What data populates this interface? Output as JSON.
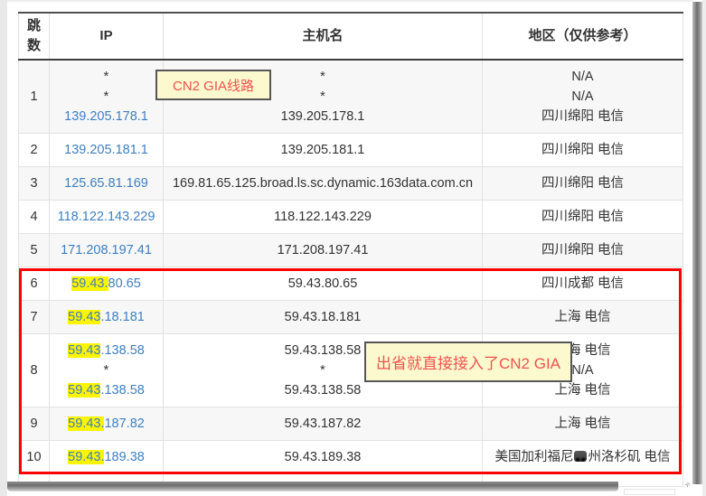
{
  "table": {
    "headers": {
      "hop": "跳数",
      "ip": "IP",
      "host": "主机名",
      "region": "地区（仅供参考）"
    },
    "rows": [
      {
        "hop": "1",
        "ip": [
          {
            "t": "*"
          },
          {
            "t": "*"
          },
          {
            "t": "139.205.178.1",
            "link": true
          }
        ],
        "host": [
          "*",
          "*",
          "139.205.178.1"
        ],
        "region": [
          "N/A",
          "N/A",
          "四川绵阳 电信"
        ]
      },
      {
        "hop": "2",
        "ip": [
          {
            "t": "139.205.181.1",
            "link": true
          }
        ],
        "host": [
          "139.205.181.1"
        ],
        "region": [
          "四川绵阳 电信"
        ]
      },
      {
        "hop": "3",
        "ip": [
          {
            "t": "125.65.81.169",
            "link": true
          }
        ],
        "host": [
          "169.81.65.125.broad.ls.sc.dynamic.163data.com.cn"
        ],
        "region": [
          "四川绵阳 电信"
        ]
      },
      {
        "hop": "4",
        "ip": [
          {
            "t": "118.122.143.229",
            "link": true
          }
        ],
        "host": [
          "118.122.143.229"
        ],
        "region": [
          "四川绵阳 电信"
        ]
      },
      {
        "hop": "5",
        "ip": [
          {
            "t": "171.208.197.41",
            "link": true
          }
        ],
        "host": [
          "171.208.197.41"
        ],
        "region": [
          "四川绵阳 电信"
        ]
      },
      {
        "hop": "6",
        "ip": [
          {
            "pre": "59.43.",
            "rest": "80.65",
            "link": true
          }
        ],
        "host": [
          "59.43.80.65"
        ],
        "region": [
          "四川成都 电信"
        ]
      },
      {
        "hop": "7",
        "ip": [
          {
            "pre": "59.43",
            "rest": ".18.181",
            "link": true
          }
        ],
        "host": [
          "59.43.18.181"
        ],
        "region": [
          "上海 电信"
        ]
      },
      {
        "hop": "8",
        "ip": [
          {
            "pre": "59.43",
            "rest": ".138.58",
            "link": true
          },
          {
            "t": "*"
          },
          {
            "pre": "59.43",
            "rest": ".138.58",
            "link": true
          }
        ],
        "host": [
          "59.43.138.58",
          "*",
          "59.43.138.58"
        ],
        "region": [
          "上海 电信",
          "N/A",
          "上海 电信"
        ]
      },
      {
        "hop": "9",
        "ip": [
          {
            "pre": "59.43.",
            "rest": "187.82",
            "link": true
          }
        ],
        "host": [
          "59.43.187.82"
        ],
        "region": [
          "上海 电信"
        ]
      },
      {
        "hop": "10",
        "ip": [
          {
            "pre": "59.43.",
            "rest": "189.38",
            "link": true
          }
        ],
        "host": [
          "59.43.189.38"
        ],
        "region": [
          {
            "pre": "美国加利福尼",
            "icon": "dark-glyph-icon",
            "post": "州洛杉矶 电信"
          }
        ]
      }
    ]
  },
  "annotations": {
    "note1": "CN2 GIA线路",
    "note2": "出省就直接接入了CN2 GIA"
  },
  "icons": {
    "region_glyph": "dark-glyph-icon",
    "cursor_artifact": "resize-cursor-icon"
  },
  "colors": {
    "link_blue": "#3e7fc1",
    "highlight_yellow": "#fcf400",
    "note_text_red": "#f0534f",
    "note_bg_yellow": "#fcf9cf",
    "frame_red": "#fd0100",
    "odd_row_bg": "#f7f7f7",
    "text": "#333333"
  }
}
